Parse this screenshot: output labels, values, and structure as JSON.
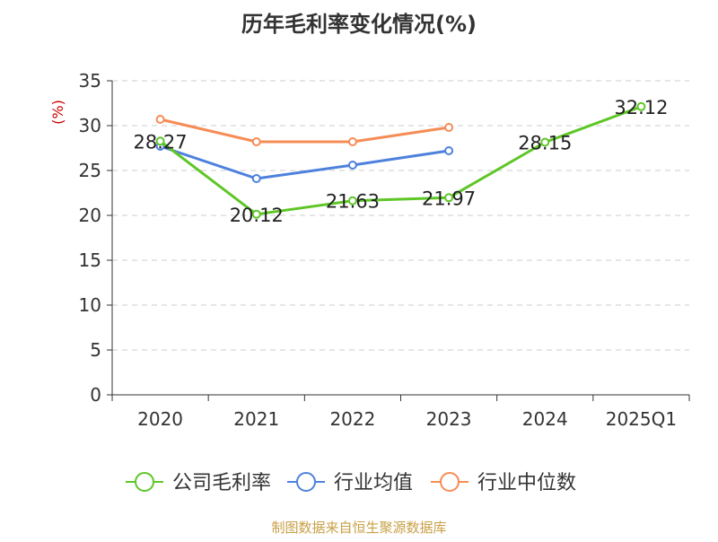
{
  "chart_data": {
    "type": "line",
    "title": "历年毛利率变化情况(%)",
    "ylabel": "(%)",
    "xlabel": "",
    "categories": [
      "2020",
      "2021",
      "2022",
      "2023",
      "2024",
      "2025Q1"
    ],
    "ylim": [
      0,
      35
    ],
    "yticks": [
      0,
      5,
      10,
      15,
      20,
      25,
      30,
      35
    ],
    "grid": true,
    "legend_position": "bottom",
    "series": [
      {
        "name": "公司毛利率",
        "color": "#5ec627",
        "values": [
          28.27,
          20.12,
          21.63,
          21.97,
          28.15,
          32.12
        ],
        "labeled": true
      },
      {
        "name": "行业均值",
        "color": "#4e81dd",
        "values": [
          27.7,
          24.1,
          25.6,
          27.2,
          null,
          null
        ],
        "labeled": false
      },
      {
        "name": "行业中位数",
        "color": "#f68c55",
        "values": [
          30.7,
          28.2,
          28.2,
          29.8,
          null,
          null
        ],
        "labeled": false
      }
    ],
    "data_labels": [
      "28.27",
      "20.12",
      "21.63",
      "21.97",
      "28.15",
      "32.12"
    ]
  },
  "source": "制图数据来自恒生聚源数据库",
  "colors": {
    "title": "#333333",
    "ylabel": "#cc0000",
    "source": "#c8a046",
    "axis": "#333333",
    "grid": "#cccccc"
  }
}
